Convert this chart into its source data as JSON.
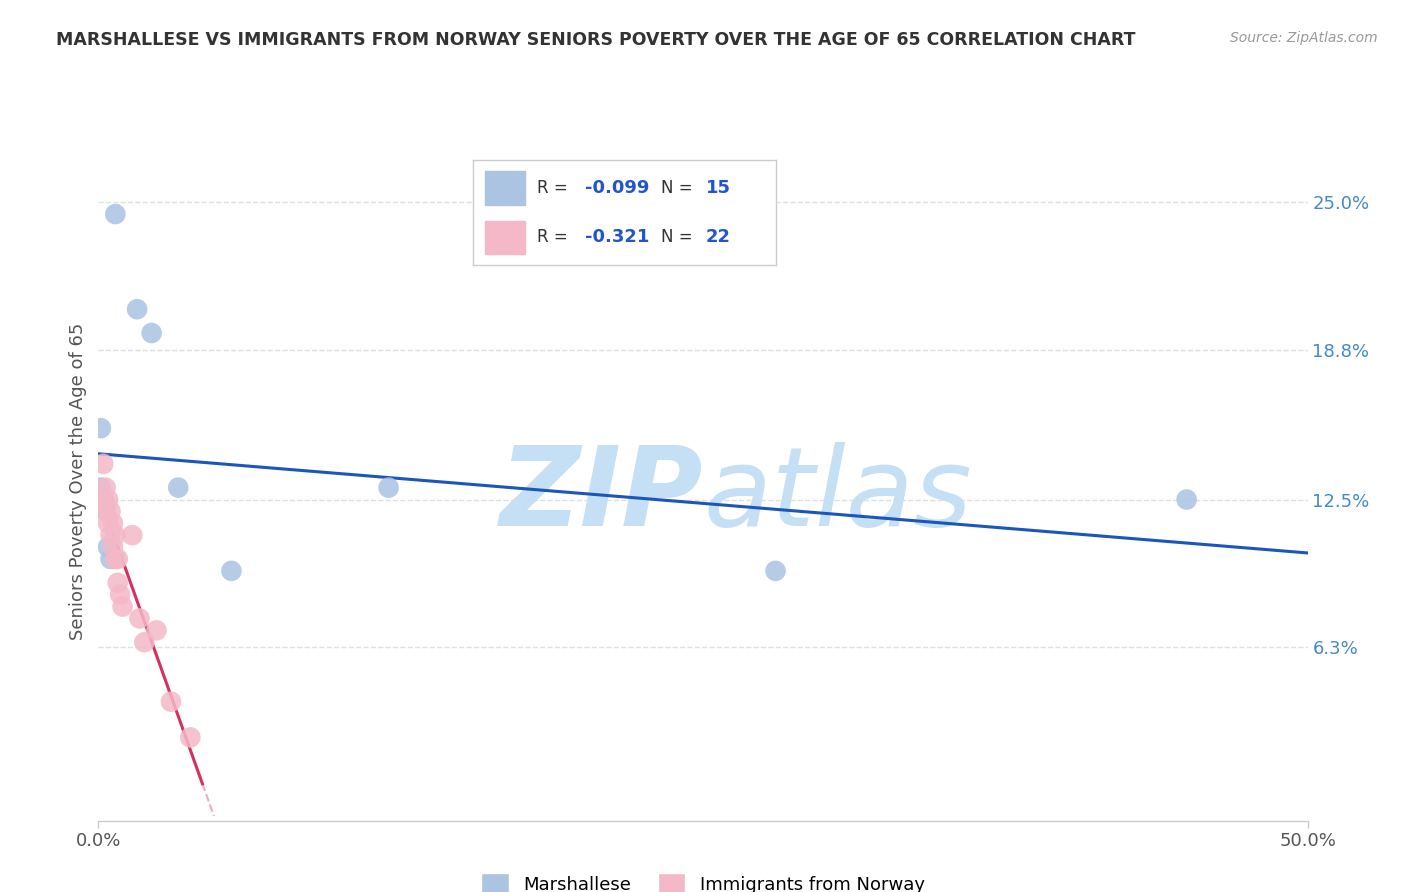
{
  "title": "MARSHALLESE VS IMMIGRANTS FROM NORWAY SENIORS POVERTY OVER THE AGE OF 65 CORRELATION CHART",
  "source": "Source: ZipAtlas.com",
  "ylabel": "Seniors Poverty Over the Age of 65",
  "legend_label1": "Marshallese",
  "legend_label2": "Immigrants from Norway",
  "R1": "-0.099",
  "N1": "15",
  "R2": "-0.321",
  "N2": "22",
  "xlim": [
    0.0,
    0.5
  ],
  "ylim": [
    -0.01,
    0.275
  ],
  "ytick_right_vals": [
    0.063,
    0.125,
    0.188,
    0.25
  ],
  "ytick_right_labels": [
    "6.3%",
    "12.5%",
    "18.8%",
    "25.0%"
  ],
  "color_marshallese": "#aac4e2",
  "color_norway": "#f4b8c8",
  "color_line_marshallese": "#1a56bb",
  "color_line_norway": "#d43060",
  "watermark_color": "#c5dff5",
  "background_color": "#ffffff",
  "marshallese_x": [
    0.007,
    0.016,
    0.022,
    0.001,
    0.001,
    0.001,
    0.002,
    0.003,
    0.004,
    0.033,
    0.005,
    0.45,
    0.28,
    0.12,
    0.055
  ],
  "marshallese_y": [
    0.245,
    0.205,
    0.195,
    0.155,
    0.13,
    0.125,
    0.125,
    0.12,
    0.105,
    0.13,
    0.1,
    0.125,
    0.095,
    0.13,
    0.095
  ],
  "norway_x": [
    0.002,
    0.002,
    0.003,
    0.003,
    0.004,
    0.004,
    0.005,
    0.005,
    0.006,
    0.006,
    0.007,
    0.007,
    0.008,
    0.008,
    0.009,
    0.01,
    0.014,
    0.017,
    0.019,
    0.024,
    0.03,
    0.038
  ],
  "norway_y": [
    0.14,
    0.125,
    0.13,
    0.12,
    0.125,
    0.115,
    0.12,
    0.11,
    0.115,
    0.105,
    0.11,
    0.1,
    0.1,
    0.09,
    0.085,
    0.08,
    0.11,
    0.075,
    0.065,
    0.07,
    0.04,
    0.025
  ],
  "grid_color": "#e0e0e0",
  "gridline_y": [
    0.063,
    0.125,
    0.188,
    0.25
  ]
}
